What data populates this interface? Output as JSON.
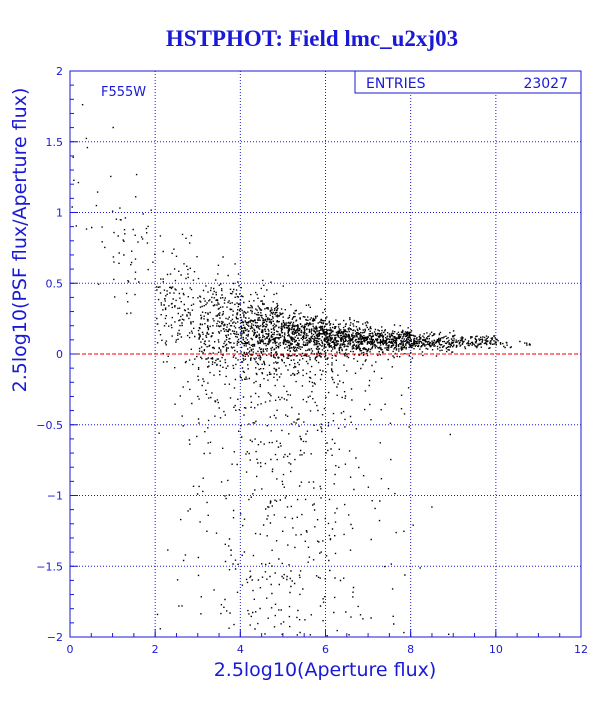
{
  "chart_data": {
    "type": "scatter",
    "title": "HSTPHOT: Field lmc_u2xj03",
    "xlabel": "2.5log10(Aperture flux)",
    "ylabel": "2.5log10(PSF flux/Aperture flux)",
    "xlim": [
      0,
      12
    ],
    "ylim": [
      -2,
      2
    ],
    "xticks": [
      0,
      2,
      4,
      6,
      8,
      10,
      12
    ],
    "yticks": [
      -2,
      -1.5,
      -1,
      -0.5,
      0,
      0.5,
      1,
      1.5,
      2
    ],
    "xtick_labels": [
      "0",
      "2",
      "4",
      "6",
      "8",
      "10",
      "12"
    ],
    "ytick_labels": [
      "−2",
      "−1.5",
      "−1",
      "−0.5",
      "0",
      "0.5",
      "1",
      "1.5",
      "2"
    ],
    "grid": true,
    "filter_label": "F555W",
    "stats_box": {
      "label": "ENTRIES",
      "value": "23027"
    },
    "reference_line": {
      "y": 0,
      "color": "#ff0000",
      "style": "dashed"
    },
    "series": [
      {
        "density_profile": [
          {
            "x": 0.5,
            "median_y": 1.1,
            "spread": 0.45,
            "weight": 0.05
          },
          {
            "x": 1.5,
            "median_y": 0.7,
            "spread": 0.45,
            "weight": 0.1
          },
          {
            "x": 2.5,
            "median_y": 0.35,
            "spread": 0.35,
            "weight": 0.3
          },
          {
            "x": 3.5,
            "median_y": 0.22,
            "spread": 0.28,
            "weight": 0.6
          },
          {
            "x": 4.5,
            "median_y": 0.16,
            "spread": 0.2,
            "weight": 1.0
          },
          {
            "x": 5.5,
            "median_y": 0.13,
            "spread": 0.14,
            "weight": 1.0
          },
          {
            "x": 6.5,
            "median_y": 0.11,
            "spread": 0.1,
            "weight": 0.9
          },
          {
            "x": 7.5,
            "median_y": 0.1,
            "spread": 0.07,
            "weight": 0.7
          },
          {
            "x": 8.5,
            "median_y": 0.09,
            "spread": 0.05,
            "weight": 0.45
          },
          {
            "x": 9.5,
            "median_y": 0.09,
            "spread": 0.04,
            "weight": 0.25
          },
          {
            "x": 10.3,
            "median_y": 0.08,
            "spread": 0.04,
            "weight": 0.05
          }
        ],
        "tail": {
          "x_range": [
            2,
            9
          ],
          "y_range": [
            -2,
            0
          ],
          "concentration_x": 5
        }
      }
    ]
  },
  "colors": {
    "text": "#1a1ad6",
    "grid": "#1a1ad6",
    "points": "#000000",
    "reference": "#ff0000",
    "background": "#ffffff"
  }
}
